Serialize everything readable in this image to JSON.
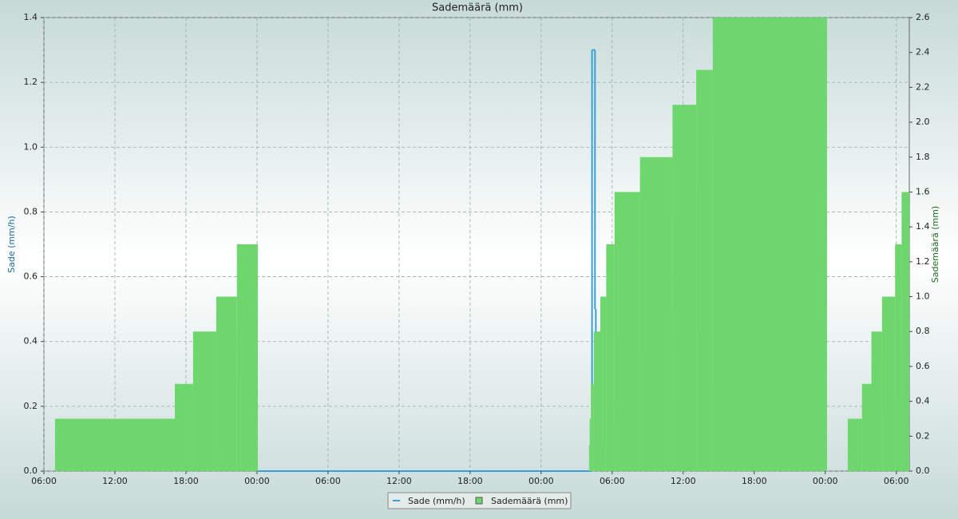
{
  "chart_data": {
    "type": "step",
    "title": "Sademäärä (mm)",
    "y_label": "Sade (mm/h)",
    "y2_label": "Sademäärä (mm)",
    "xlim": [
      0,
      73.1
    ],
    "xticks": [
      {
        "value": 0,
        "label": "06:00"
      },
      {
        "value": 6,
        "label": "12:00"
      },
      {
        "value": 12,
        "label": "18:00"
      },
      {
        "value": 18,
        "label": "00:00"
      },
      {
        "value": 24,
        "label": "06:00"
      },
      {
        "value": 30,
        "label": "12:00"
      },
      {
        "value": 36,
        "label": "18:00"
      },
      {
        "value": 42,
        "label": "00:00"
      },
      {
        "value": 48,
        "label": "06:00"
      },
      {
        "value": 54,
        "label": "12:00"
      },
      {
        "value": 60,
        "label": "18:00"
      },
      {
        "value": 66,
        "label": "00:00"
      },
      {
        "value": 72,
        "label": "06:00"
      }
    ],
    "ylim": [
      0,
      1.4
    ],
    "yticks": [
      {
        "value": 0,
        "label": "0.0"
      },
      0.2,
      0.4,
      0.6,
      0.8,
      {
        "value": 1,
        "label": "1.0"
      },
      1.2,
      1.4
    ],
    "y2lim": [
      0,
      2.6
    ],
    "y2ticks": [
      {
        "value": 0,
        "label": "0.0"
      },
      0.2,
      0.4,
      0.6,
      0.8,
      {
        "value": 1,
        "label": "1.0"
      },
      1.2,
      1.4,
      1.6,
      1.8,
      {
        "value": 2,
        "label": "2.0"
      },
      2.2,
      2.4,
      2.6
    ],
    "grid": true,
    "series": [
      {
        "name": "Sade (mm/h)",
        "color": "#3a9fd6",
        "style": "line",
        "x": [
          18.07,
          46.3,
          46.55,
          46.62
        ],
        "values": [
          0,
          1.3,
          0.5,
          0
        ]
      },
      {
        "name": "Sademäärä (mm)",
        "color": "#6dd66d",
        "style": "area",
        "axis": "y2",
        "x": [
          0.94,
          11.06,
          12.6,
          14.56,
          16.3,
          18.07,
          46.05,
          46.1,
          46.2,
          46.45,
          47.0,
          47.5,
          48.2,
          50.35,
          53.1,
          55.1,
          56.5,
          66.15,
          67.9,
          69.1,
          69.9,
          70.8,
          71.9,
          72.45
        ],
        "values": [
          0.3,
          0.5,
          0.8,
          1.0,
          1.3,
          0,
          0.15,
          0.3,
          0.5,
          0.8,
          1.0,
          1.3,
          1.6,
          1.8,
          2.1,
          2.3,
          2.6,
          0,
          0.3,
          0.5,
          0.8,
          1.0,
          1.3,
          1.6
        ]
      }
    ]
  }
}
